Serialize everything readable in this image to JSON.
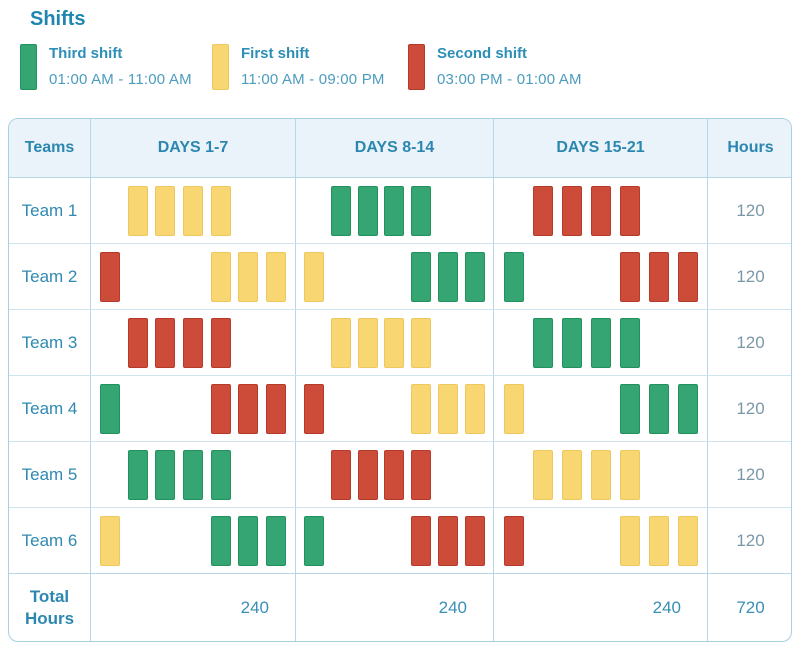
{
  "title": "Shifts",
  "chart_data": {
    "type": "table",
    "title": "Shifts",
    "legend": [
      {
        "key": "third",
        "label": "Third shift",
        "time": "01:00 AM - 11:00 AM",
        "color": "#35a673"
      },
      {
        "key": "first",
        "label": "First shift",
        "time": "11:00 AM - 09:00 PM",
        "color": "#f8d671"
      },
      {
        "key": "second",
        "label": "Second shift",
        "time": "03:00 PM - 01:00 AM",
        "color": "#cd4b39"
      }
    ],
    "shift_colors": {
      "third": "#35a673",
      "first": "#f8d671",
      "second": "#cd4b39"
    },
    "columns": [
      "Teams",
      "DAYS 1-7",
      "DAYS 8-14",
      "DAYS 15-21",
      "Hours"
    ],
    "rows": [
      {
        "team": "Team 1",
        "hours": "120",
        "weeks": [
          [
            "",
            "first",
            "first",
            "first",
            "first",
            "",
            ""
          ],
          [
            "",
            "third",
            "third",
            "third",
            "third",
            "",
            ""
          ],
          [
            "",
            "second",
            "second",
            "second",
            "second",
            "",
            ""
          ]
        ]
      },
      {
        "team": "Team 2",
        "hours": "120",
        "weeks": [
          [
            "second",
            "",
            "",
            "",
            "first",
            "first",
            "first"
          ],
          [
            "first",
            "",
            "",
            "",
            "third",
            "third",
            "third"
          ],
          [
            "third",
            "",
            "",
            "",
            "second",
            "second",
            "second"
          ]
        ]
      },
      {
        "team": "Team 3",
        "hours": "120",
        "weeks": [
          [
            "",
            "second",
            "second",
            "second",
            "second",
            "",
            ""
          ],
          [
            "",
            "first",
            "first",
            "first",
            "first",
            "",
            ""
          ],
          [
            "",
            "third",
            "third",
            "third",
            "third",
            "",
            ""
          ]
        ]
      },
      {
        "team": "Team 4",
        "hours": "120",
        "weeks": [
          [
            "third",
            "",
            "",
            "",
            "second",
            "second",
            "second"
          ],
          [
            "second",
            "",
            "",
            "",
            "first",
            "first",
            "first"
          ],
          [
            "first",
            "",
            "",
            "",
            "third",
            "third",
            "third"
          ]
        ]
      },
      {
        "team": "Team 5",
        "hours": "120",
        "weeks": [
          [
            "",
            "third",
            "third",
            "third",
            "third",
            "",
            ""
          ],
          [
            "",
            "second",
            "second",
            "second",
            "second",
            "",
            ""
          ],
          [
            "",
            "first",
            "first",
            "first",
            "first",
            "",
            ""
          ]
        ]
      },
      {
        "team": "Team 6",
        "hours": "120",
        "weeks": [
          [
            "first",
            "",
            "",
            "",
            "third",
            "third",
            "third"
          ],
          [
            "third",
            "",
            "",
            "",
            "second",
            "second",
            "second"
          ],
          [
            "second",
            "",
            "",
            "",
            "first",
            "first",
            "first"
          ]
        ]
      }
    ],
    "total_row": {
      "label": "Total Hours",
      "week_totals": [
        "240",
        "240",
        "240"
      ],
      "grand_total": "720"
    },
    "ui_colors": {
      "accent_text": "#2c87b0",
      "table_border": "#a9cfe2",
      "header_bg": "#e9f3f9",
      "hours_text": "#7b98a7"
    }
  }
}
